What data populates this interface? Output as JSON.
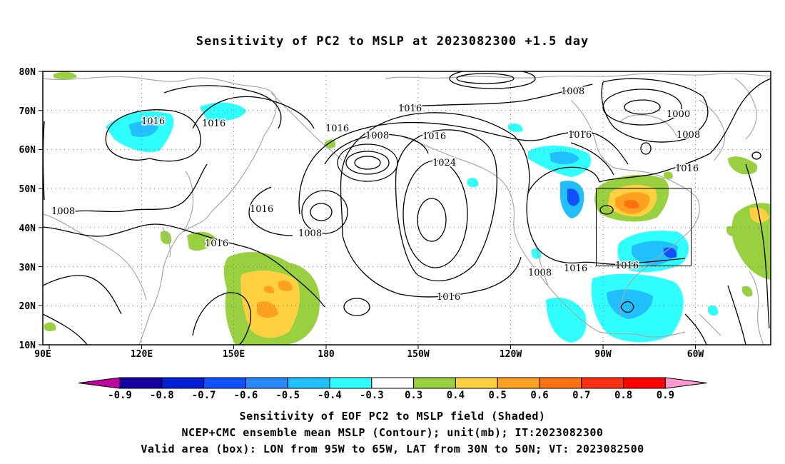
{
  "title": "Sensitivity of PC2 to MSLP at 2023082300 +1.5 day",
  "map": {
    "lon_labels": [
      "90E",
      "120E",
      "150E",
      "180",
      "150W",
      "120W",
      "90W",
      "60W"
    ],
    "lat_labels": [
      "80N",
      "70N",
      "60N",
      "50N",
      "40N",
      "30N",
      "20N",
      "10N"
    ],
    "contour_labels": [
      "1016",
      "1016",
      "1008",
      "1016",
      "1008",
      "1016",
      "1016",
      "1000",
      "1008",
      "1016",
      "1024",
      "1008",
      "1016",
      "1008",
      "1016",
      "1008",
      "1016",
      "1016",
      "1016"
    ],
    "box": {
      "lon_from": "95W",
      "lon_to": "65W",
      "lat_from": "30N",
      "lat_to": "50N"
    }
  },
  "colorbar": {
    "labels": [
      "-0.9",
      "-0.8",
      "-0.7",
      "-0.6",
      "-0.5",
      "-0.4",
      "-0.3",
      "0.3",
      "0.4",
      "0.5",
      "0.6",
      "0.7",
      "0.8",
      "0.9"
    ],
    "colors": [
      "#c000a0",
      "#1400a0",
      "#0020d8",
      "#1050ff",
      "#2888ff",
      "#20c0ff",
      "#30ffff",
      "#ffffff",
      "#98d040",
      "#ffd040",
      "#ffa020",
      "#ff7010",
      "#ff3010",
      "#ff0000",
      "#ff98d0"
    ]
  },
  "captions": [
    "Sensitivity of EOF PC2 to MSLP field (Shaded)",
    "NCEP+CMC ensemble mean MSLP (Contour); unit(mb); IT:2023082300",
    "Valid area (box): LON from 95W to 65W, LAT from 30N to 50N; VT: 2023082500"
  ]
}
